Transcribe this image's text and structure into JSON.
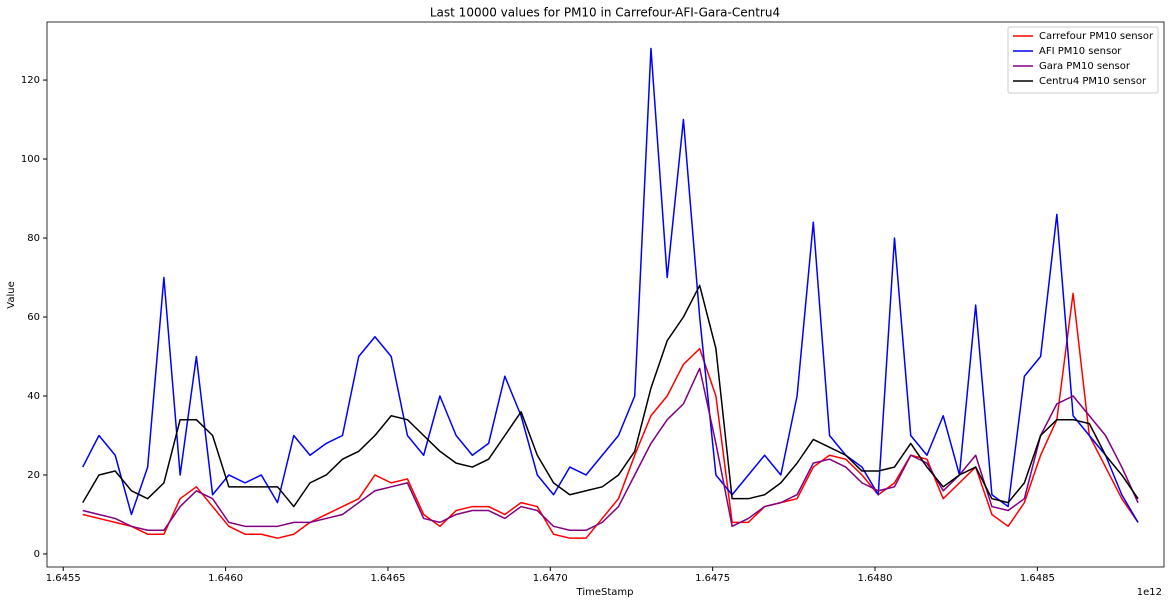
{
  "chart_data": {
    "type": "line",
    "title": "Last 10000 values for PM10 in Carrefour-AFI-Gara-Centru4",
    "x_label": "TimeStamp",
    "y_label": "Value",
    "x_offset_label": "1e12",
    "x": [
      1.64556,
      1.64561,
      1.64566,
      1.64571,
      1.64576,
      1.64581,
      1.64586,
      1.64591,
      1.64596,
      1.64601,
      1.64606,
      1.64611,
      1.64616,
      1.64621,
      1.64626,
      1.64631,
      1.64636,
      1.64641,
      1.64646,
      1.64651,
      1.64656,
      1.64661,
      1.64666,
      1.64671,
      1.64676,
      1.64681,
      1.64686,
      1.64691,
      1.64696,
      1.64701,
      1.64706,
      1.64711,
      1.64716,
      1.64721,
      1.64726,
      1.64731,
      1.64736,
      1.64741,
      1.64746,
      1.64751,
      1.64756,
      1.64761,
      1.64766,
      1.64771,
      1.64776,
      1.64781,
      1.64786,
      1.64791,
      1.64796,
      1.64801,
      1.64806,
      1.64811,
      1.64816,
      1.64821,
      1.64826,
      1.64831,
      1.64836,
      1.64841,
      1.64846,
      1.64851,
      1.64856,
      1.64861,
      1.64866,
      1.64871,
      1.64876,
      1.64881
    ],
    "series": [
      {
        "name": "Carrefour PM10 sensor",
        "color": "#ff0000",
        "values": [
          10,
          9,
          8,
          7,
          5,
          5,
          14,
          17,
          12,
          7,
          5,
          5,
          4,
          5,
          8,
          10,
          12,
          14,
          20,
          18,
          19,
          10,
          7,
          11,
          12,
          12,
          10,
          13,
          12,
          5,
          4,
          4,
          9,
          14,
          25,
          35,
          40,
          48,
          52,
          40,
          8,
          8,
          12,
          13,
          14,
          22,
          25,
          24,
          20,
          15,
          18,
          25,
          24,
          14,
          18,
          22,
          10,
          7,
          13,
          25,
          34,
          66,
          30,
          22,
          14,
          8
        ]
      },
      {
        "name": "AFI PM10 sensor",
        "color": "#0000ff",
        "values": [
          22,
          30,
          25,
          10,
          22,
          70,
          20,
          50,
          15,
          20,
          18,
          20,
          13,
          30,
          25,
          28,
          30,
          50,
          55,
          50,
          30,
          25,
          40,
          30,
          25,
          28,
          45,
          35,
          20,
          15,
          22,
          20,
          25,
          30,
          40,
          128,
          70,
          110,
          60,
          20,
          15,
          20,
          25,
          20,
          40,
          84,
          30,
          25,
          22,
          15,
          80,
          30,
          25,
          35,
          20,
          63,
          15,
          12,
          45,
          50,
          86,
          35,
          30,
          25,
          15,
          8
        ]
      },
      {
        "name": "Gara PM10 sensor",
        "color": "#800080",
        "values": [
          11,
          10,
          9,
          7,
          6,
          6,
          12,
          16,
          14,
          8,
          7,
          7,
          7,
          8,
          8,
          9,
          10,
          13,
          16,
          17,
          18,
          9,
          8,
          10,
          11,
          11,
          9,
          12,
          11,
          7,
          6,
          6,
          8,
          12,
          20,
          28,
          34,
          38,
          47,
          28,
          7,
          9,
          12,
          13,
          15,
          23,
          24,
          22,
          18,
          16,
          17,
          25,
          23,
          16,
          20,
          25,
          12,
          11,
          14,
          30,
          38,
          40,
          35,
          30,
          22,
          13
        ]
      },
      {
        "name": "Centru4 PM10 sensor",
        "color": "#000000",
        "values": [
          13,
          20,
          21,
          16,
          14,
          18,
          34,
          34,
          30,
          17,
          17,
          17,
          17,
          12,
          18,
          20,
          24,
          26,
          30,
          35,
          34,
          30,
          26,
          23,
          22,
          24,
          30,
          36,
          25,
          18,
          15,
          16,
          17,
          20,
          26,
          42,
          54,
          60,
          68,
          52,
          14,
          14,
          15,
          18,
          23,
          29,
          27,
          25,
          21,
          21,
          22,
          28,
          22,
          17,
          20,
          22,
          14,
          13,
          18,
          30,
          34,
          34,
          33,
          25,
          20,
          14
        ]
      }
    ],
    "xlim": [
      1.64545,
      1.64889
    ],
    "xticks": [
      1.6455,
      {
        "value": 1.646,
        "label": "1.6460"
      },
      1.6465,
      {
        "value": 1.647,
        "label": "1.6470"
      },
      1.6475,
      {
        "value": 1.648,
        "label": "1.6480"
      },
      1.6485
    ],
    "ylim": [
      -3.3,
      134.7
    ],
    "yticks": [
      0,
      20,
      40,
      60,
      80,
      100,
      120
    ],
    "grid": false,
    "legend": "upper right"
  }
}
